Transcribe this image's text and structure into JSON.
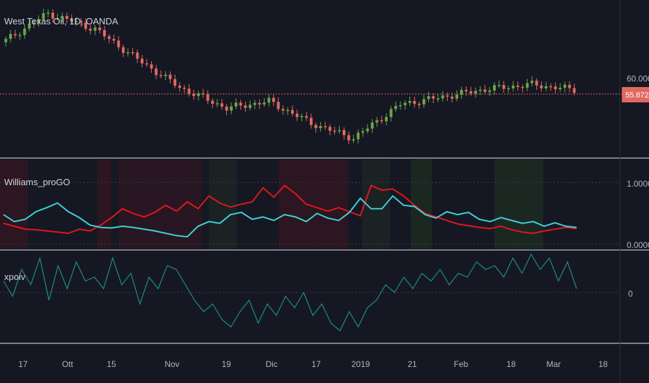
{
  "header": {
    "symbol_label": "West Texas Oil, 1D, OANDA"
  },
  "colors": {
    "background": "#151823",
    "up_candle": "#6ba548",
    "down_candle": "#e0695f",
    "price_line": "#e0695f",
    "williams_red": "#e3161d",
    "williams_cyan": "#3fd2d4",
    "xpoiv_line": "#1e8c8a",
    "separator": "#7e818a",
    "axis_text": "#b2b5be"
  },
  "panes": {
    "price": {
      "axis_label": "60.000",
      "last_price": "55.872"
    },
    "williams": {
      "title": "Williams_proGO",
      "axis_top_label": "1.0000",
      "axis_bottom_label": "0.0000"
    },
    "xpoiv": {
      "title": "xpoiv",
      "axis_label": "0"
    }
  },
  "time_axis": {
    "labels": [
      "17",
      "Ott",
      "15",
      "Nov",
      "19",
      "Dic",
      "17",
      "2019",
      "21",
      "Feb",
      "18",
      "Mar",
      "18"
    ]
  },
  "chart_data": [
    {
      "type": "candlestick",
      "title": "West Texas Oil, 1D, OANDA",
      "y_axis_label": "60.000",
      "last_value": 55.872,
      "trend_description_points": [
        {
          "date": "2018-09-12",
          "close": 69.0
        },
        {
          "date": "2018-10-03",
          "close": 76.2
        },
        {
          "date": "2018-10-15",
          "close": 72.0
        },
        {
          "date": "2018-11-01",
          "close": 64.0
        },
        {
          "date": "2018-11-15",
          "close": 56.5
        },
        {
          "date": "2018-11-23",
          "close": 51.0
        },
        {
          "date": "2018-12-07",
          "close": 52.8
        },
        {
          "date": "2018-12-18",
          "close": 47.0
        },
        {
          "date": "2018-12-24",
          "close": 43.0
        },
        {
          "date": "2019-01-10",
          "close": 52.0
        },
        {
          "date": "2019-02-01",
          "close": 54.0
        },
        {
          "date": "2019-02-18",
          "close": 56.0
        },
        {
          "date": "2019-02-25",
          "close": 57.3
        },
        {
          "date": "2019-03-08",
          "close": 55.872
        }
      ]
    },
    {
      "type": "line",
      "title": "Williams_proGO",
      "ylim": [
        0,
        1.0
      ],
      "series": [
        {
          "name": "",
          "color": "#e3161d",
          "values": [
            0.35,
            0.3,
            0.25,
            0.24,
            0.22,
            0.2,
            0.18,
            0.25,
            0.22,
            0.32,
            0.45,
            0.6,
            0.52,
            0.46,
            0.54,
            0.66,
            0.56,
            0.72,
            0.6,
            0.82,
            0.7,
            0.63,
            0.68,
            0.72,
            0.96,
            0.8,
            1.0,
            0.86,
            0.68,
            0.62,
            0.56,
            0.62,
            0.55,
            0.48,
            1.0,
            0.92,
            0.94,
            0.82,
            0.66,
            0.52,
            0.46,
            0.4,
            0.34,
            0.31,
            0.28,
            0.26,
            0.3,
            0.24,
            0.2,
            0.18,
            0.22,
            0.25,
            0.28,
            0.26
          ]
        },
        {
          "name": "",
          "color": "#3fd2d4",
          "values": [
            0.5,
            0.38,
            0.42,
            0.55,
            0.62,
            0.7,
            0.55,
            0.45,
            0.32,
            0.28,
            0.27,
            0.3,
            0.28,
            0.25,
            0.22,
            0.18,
            0.14,
            0.12,
            0.3,
            0.38,
            0.35,
            0.5,
            0.54,
            0.42,
            0.46,
            0.4,
            0.5,
            0.46,
            0.38,
            0.52,
            0.44,
            0.4,
            0.54,
            0.78,
            0.6,
            0.6,
            0.82,
            0.66,
            0.64,
            0.5,
            0.44,
            0.55,
            0.5,
            0.54,
            0.42,
            0.38,
            0.45,
            0.4,
            0.35,
            0.38,
            0.3,
            0.36,
            0.3,
            0.28
          ]
        }
      ],
      "axis_labels": [
        "1.0000",
        "0.0000"
      ]
    },
    {
      "type": "line",
      "title": "xpoiv",
      "series": [
        {
          "name": "",
          "color": "#1e8c8a",
          "values": [
            0.3,
            -0.1,
            0.6,
            0.2,
            0.9,
            -0.2,
            0.7,
            0.1,
            0.8,
            0.3,
            0.4,
            0.1,
            0.9,
            0.2,
            0.5,
            -0.3,
            0.4,
            0.1,
            0.7,
            0.6,
            0.2,
            -0.2,
            -0.5,
            -0.3,
            -0.7,
            -0.9,
            -0.5,
            -0.2,
            -0.8,
            -0.3,
            -0.6,
            -0.1,
            -0.4,
            0.0,
            -0.6,
            -0.3,
            -0.8,
            -1.0,
            -0.5,
            -0.9,
            -0.4,
            -0.2,
            0.2,
            0.0,
            0.4,
            0.1,
            0.5,
            0.3,
            0.6,
            0.2,
            0.5,
            0.4,
            0.8,
            0.6,
            0.7,
            0.4,
            0.9,
            0.5,
            1.0,
            0.6,
            0.9,
            0.3,
            0.8,
            0.1
          ]
        }
      ],
      "axis_labels": [
        "0"
      ]
    }
  ]
}
